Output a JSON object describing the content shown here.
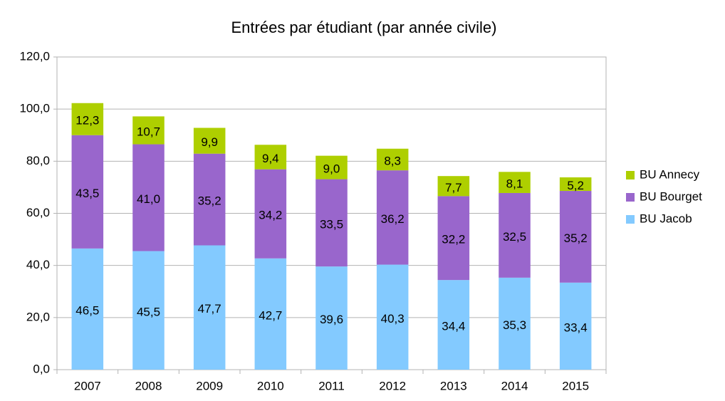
{
  "chart_data": {
    "type": "stacked_bar",
    "title": "Entrées par étudiant (par année civile)",
    "categories": [
      "2007",
      "2008",
      "2009",
      "2010",
      "2011",
      "2012",
      "2013",
      "2014",
      "2015"
    ],
    "series": [
      {
        "name": "BU Jacob",
        "color": "#83caff",
        "values": [
          46.5,
          45.5,
          47.7,
          42.7,
          39.6,
          40.3,
          34.4,
          35.3,
          33.4
        ],
        "value_labels": [
          "46,5",
          "45,5",
          "47,7",
          "42,7",
          "39,6",
          "40,3",
          "34,4",
          "35,3",
          "33,4"
        ]
      },
      {
        "name": "BU Bourget",
        "color": "#9966cc",
        "values": [
          43.5,
          41.0,
          35.2,
          34.2,
          33.5,
          36.2,
          32.2,
          32.5,
          35.2
        ],
        "value_labels": [
          "43,5",
          "41,0",
          "35,2",
          "34,2",
          "33,5",
          "36,2",
          "32,2",
          "32,5",
          "35,2"
        ]
      },
      {
        "name": "BU Annecy",
        "color": "#aecf00",
        "values": [
          12.3,
          10.7,
          9.9,
          9.4,
          9.0,
          8.3,
          7.7,
          8.1,
          5.2
        ],
        "value_labels": [
          "12,3",
          "10,7",
          "9,9",
          "9,4",
          "9,0",
          "8,3",
          "7,7",
          "8,1",
          "5,2"
        ]
      }
    ],
    "ylim": [
      0,
      120
    ],
    "yticks": [
      {
        "value": 0,
        "label": "0,0"
      },
      {
        "value": 20,
        "label": "20,0"
      },
      {
        "value": 40,
        "label": "40,0"
      },
      {
        "value": 60,
        "label": "60,0"
      },
      {
        "value": 80,
        "label": "80,0"
      },
      {
        "value": 100,
        "label": "100,0"
      },
      {
        "value": 120,
        "label": "120,0"
      }
    ],
    "grid": true,
    "legend": "right"
  }
}
